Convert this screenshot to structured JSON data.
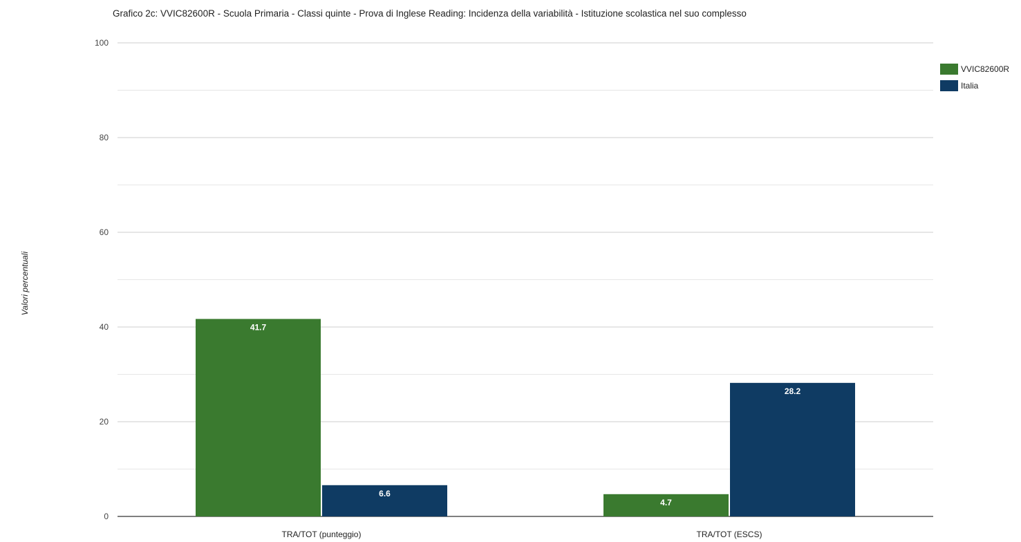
{
  "chart_data": {
    "type": "bar",
    "title": "Grafico 2c: VVIC82600R - Scuola Primaria - Classi quinte - Prova di Inglese Reading: Incidenza della variabilità - Istituzione scolastica nel suo complesso",
    "ylabel": "Valori percentuali",
    "xlabel": "",
    "ylim": [
      0,
      100
    ],
    "yticks": [
      0,
      20,
      40,
      60,
      80,
      100
    ],
    "grid": true,
    "legend_position": "top-right",
    "categories": [
      "TRA/TOT (punteggio)",
      "TRA/TOT (ESCS)"
    ],
    "series": [
      {
        "name": "VVIC82600R",
        "color": "#3a7a2f",
        "values": [
          41.7,
          4.7
        ],
        "labels": [
          "41.7",
          "4.7"
        ]
      },
      {
        "name": "Italia",
        "color": "#0f3b63",
        "values": [
          6.6,
          28.2
        ],
        "labels": [
          "6.6",
          "28.2"
        ]
      }
    ]
  }
}
